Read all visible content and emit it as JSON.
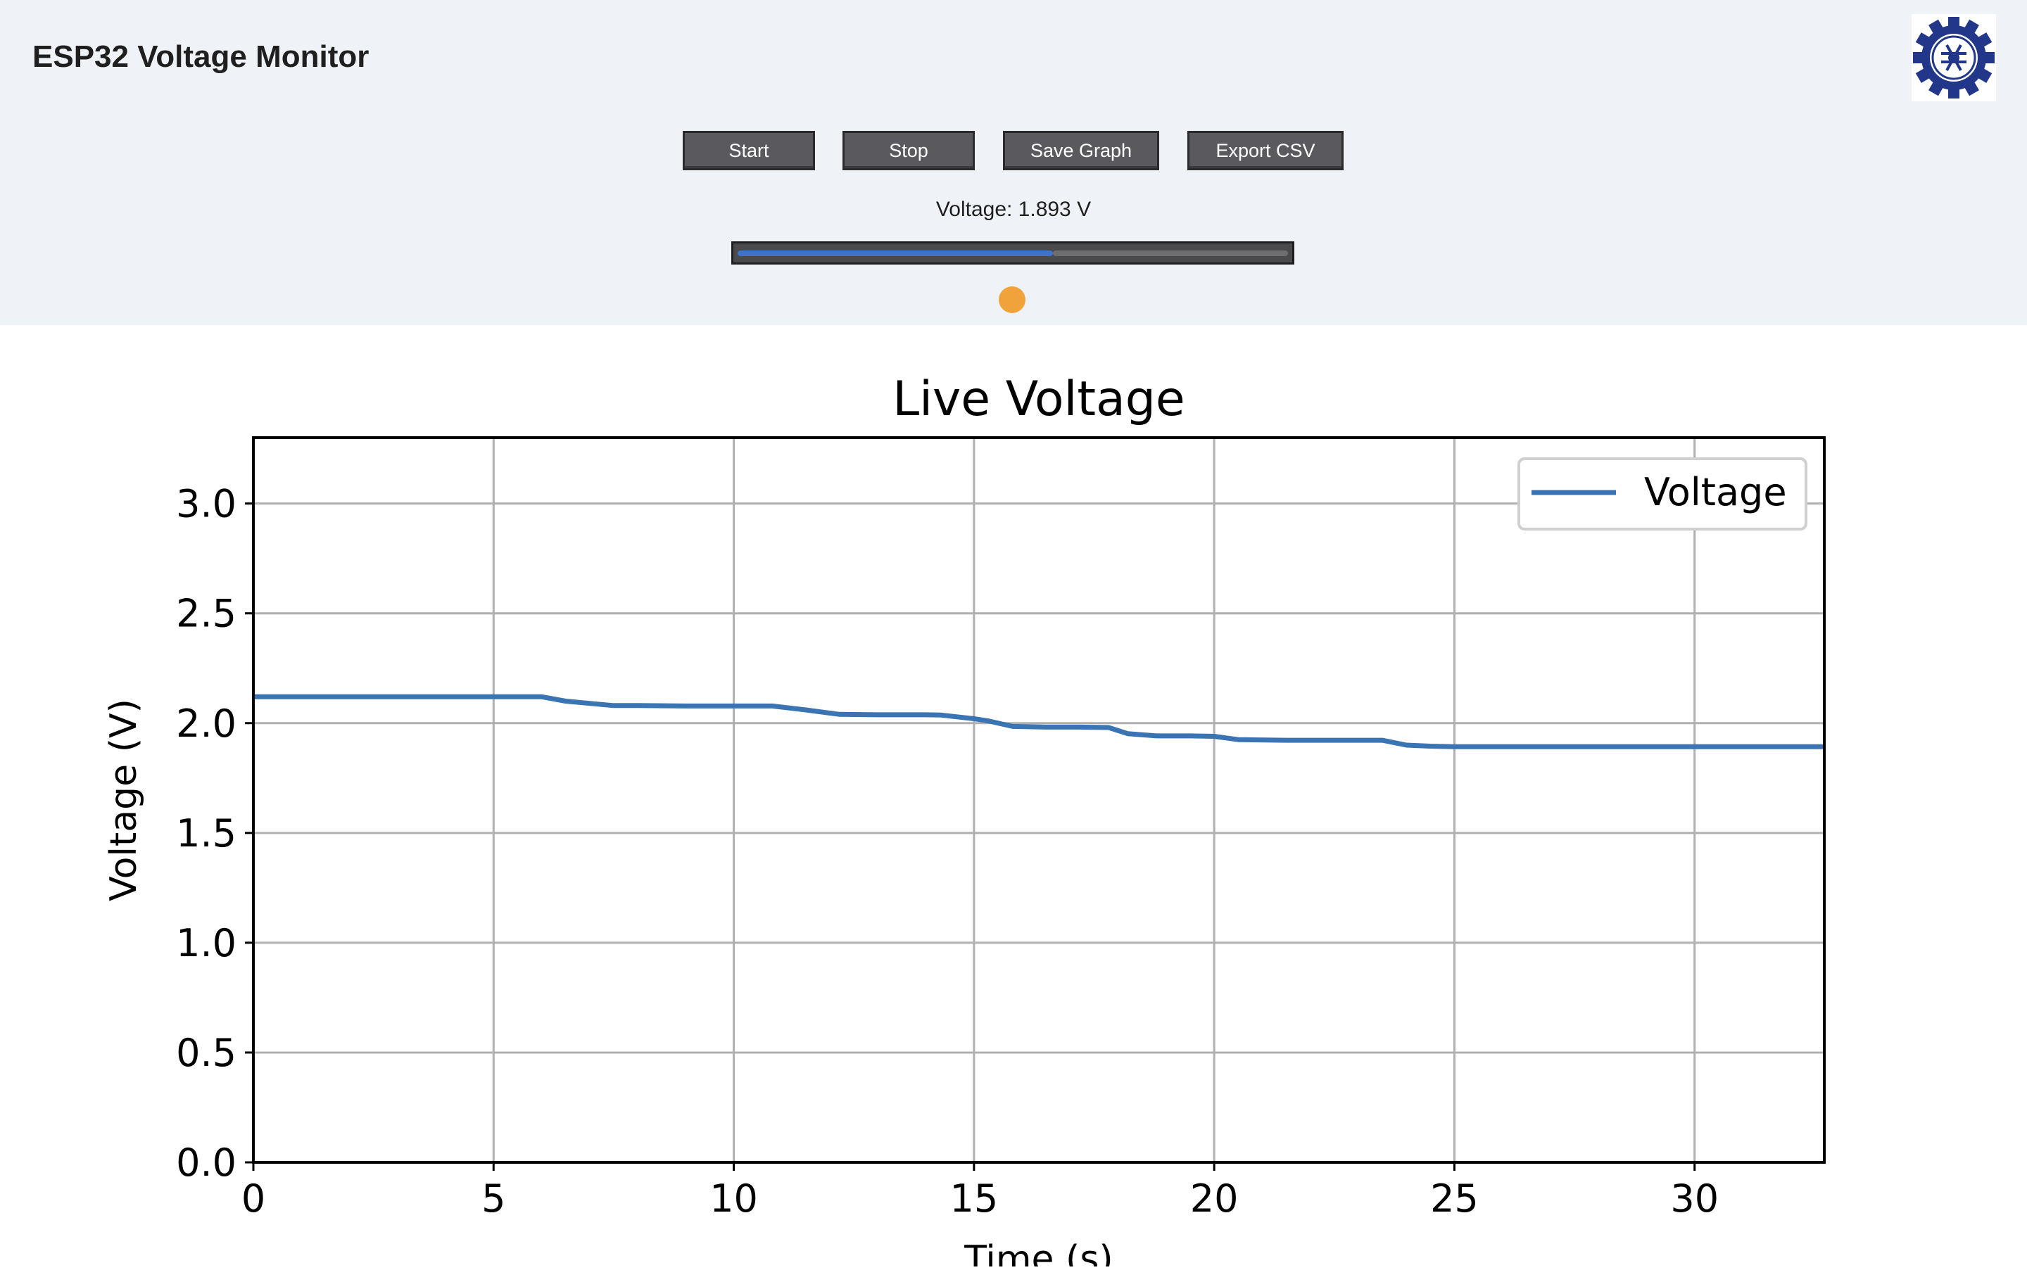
{
  "header": {
    "title": "ESP32 Voltage Monitor",
    "logo_icon": "institution-gear-logo-icon"
  },
  "toolbar": {
    "start_label": "Start",
    "stop_label": "Stop",
    "save_graph_label": "Save Graph",
    "export_csv_label": "Export CSV"
  },
  "readout": {
    "voltage_text": "Voltage: 1.893 V",
    "progress_fraction": 0.573,
    "status_color": "#f0a33a"
  },
  "colors": {
    "header_bg": "#eff3f7",
    "button_bg": "#5a5a5e",
    "progress_fill": "#3f72cc",
    "line": "#3a74b3"
  },
  "chart_data": {
    "type": "line",
    "title": "Live Voltage",
    "xlabel": "Time (s)",
    "ylabel": "Voltage (V)",
    "xlim": [
      0,
      32.7
    ],
    "ylim": [
      0,
      3.3
    ],
    "xticks": [
      0,
      5,
      10,
      15,
      20,
      25,
      30
    ],
    "xtick_labels": [
      "0",
      "5",
      "10",
      "15",
      "20",
      "25",
      "30"
    ],
    "yticks": [
      0.0,
      0.5,
      1.0,
      1.5,
      2.0,
      2.5,
      3.0
    ],
    "ytick_labels": [
      "0.0",
      "0.5",
      "1.0",
      "1.5",
      "2.0",
      "2.5",
      "3.0"
    ],
    "grid": true,
    "legend_position": "top-right",
    "series": [
      {
        "name": "Voltage",
        "x": [
          0,
          1,
          2,
          3,
          4,
          5,
          6,
          6.5,
          7,
          7.5,
          8,
          9,
          10,
          10.8,
          11.5,
          12.2,
          13,
          14,
          14.3,
          15,
          15.3,
          15.8,
          16.5,
          17.2,
          17.8,
          18.2,
          18.8,
          19.5,
          20,
          20.5,
          21.5,
          22.5,
          23.5,
          24,
          24.5,
          25,
          26,
          27,
          28,
          29,
          30,
          31,
          32,
          32.7
        ],
        "y": [
          2.12,
          2.12,
          2.12,
          2.12,
          2.12,
          2.12,
          2.12,
          2.1,
          2.09,
          2.08,
          2.08,
          2.078,
          2.078,
          2.078,
          2.06,
          2.04,
          2.038,
          2.038,
          2.037,
          2.02,
          2.01,
          1.985,
          1.982,
          1.982,
          1.98,
          1.952,
          1.942,
          1.942,
          1.94,
          1.925,
          1.922,
          1.922,
          1.922,
          1.9,
          1.895,
          1.893,
          1.893,
          1.893,
          1.893,
          1.893,
          1.893,
          1.893,
          1.893,
          1.893
        ]
      }
    ]
  }
}
